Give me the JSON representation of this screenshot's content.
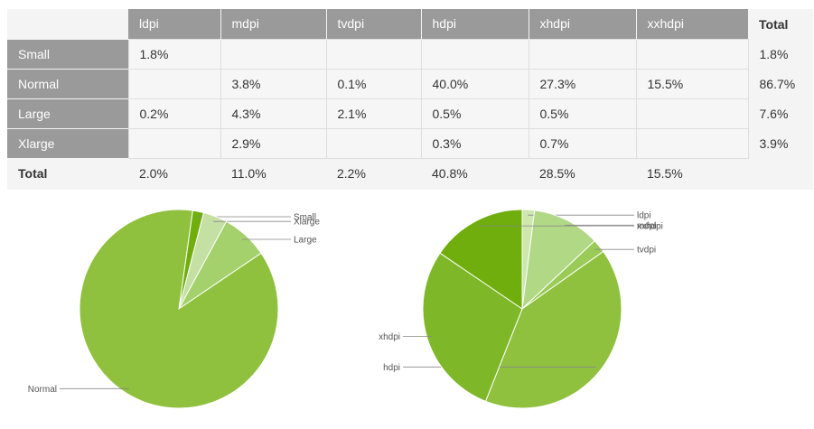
{
  "table": {
    "columns": [
      "ldpi",
      "mdpi",
      "tvdpi",
      "hdpi",
      "xhdpi",
      "xxhdpi"
    ],
    "total_label": "Total",
    "rows": [
      {
        "label": "Small",
        "cells": [
          "1.8%",
          "",
          "",
          "",
          "",
          ""
        ],
        "total": "1.8%"
      },
      {
        "label": "Normal",
        "cells": [
          "",
          "3.8%",
          "0.1%",
          "40.0%",
          "27.3%",
          "15.5%"
        ],
        "total": "86.7%"
      },
      {
        "label": "Large",
        "cells": [
          "0.2%",
          "4.3%",
          "2.1%",
          "0.5%",
          "0.5%",
          ""
        ],
        "total": "7.6%"
      },
      {
        "label": "Xlarge",
        "cells": [
          "",
          "2.9%",
          "",
          "0.3%",
          "0.7%",
          ""
        ],
        "total": "3.9%"
      }
    ],
    "totals_row_label": "Total",
    "column_totals": [
      "2.0%",
      "11.0%",
      "2.2%",
      "40.8%",
      "28.5%",
      "15.5%"
    ]
  },
  "chart_data": [
    {
      "type": "pie",
      "slices": [
        {
          "label": "Small",
          "value": 1.8,
          "color": "#6fae0c"
        },
        {
          "label": "Xlarge",
          "value": 3.9,
          "color": "#c5e0a3"
        },
        {
          "label": "Large",
          "value": 7.6,
          "color": "#a5d16d"
        },
        {
          "label": "Normal",
          "value": 86.7,
          "color": "#8fc13e"
        }
      ]
    },
    {
      "type": "pie",
      "slices": [
        {
          "label": "ldpi",
          "value": 2.0,
          "color": "#cde7ad"
        },
        {
          "label": "mdpi",
          "value": 11.0,
          "color": "#b1d885"
        },
        {
          "label": "tvdpi",
          "value": 2.2,
          "color": "#9bcb57"
        },
        {
          "label": "hdpi",
          "value": 40.8,
          "color": "#8fc13e"
        },
        {
          "label": "xhdpi",
          "value": 28.5,
          "color": "#7eb828"
        },
        {
          "label": "xxhdpi",
          "value": 15.5,
          "color": "#6fae0c"
        }
      ]
    }
  ]
}
